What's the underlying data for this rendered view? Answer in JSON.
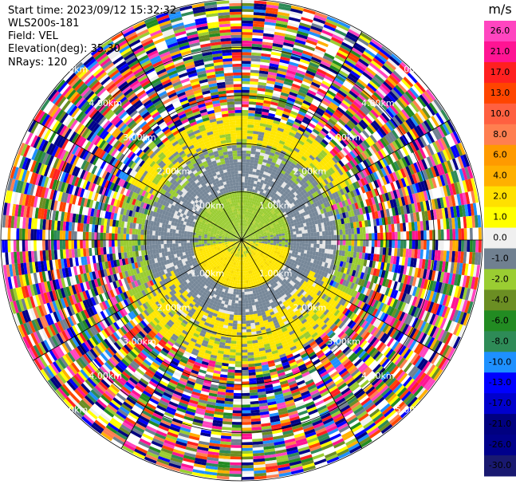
{
  "header": {
    "start_time": "Start time: 2023/09/12 15:32:32",
    "instrument": "WLS200s-181",
    "field": "Field: VEL",
    "elevation": "Elevation(deg): 35.30",
    "nrays": "NRays: 120"
  },
  "colorbar": {
    "unit": "m/s",
    "ticks": [
      "26.0",
      "21.0",
      "17.0",
      "13.0",
      "10.0",
      "8.0",
      "6.0",
      "4.0",
      "2.0",
      "1.0",
      "0.0",
      "-1.0",
      "-2.0",
      "-4.0",
      "-6.0",
      "-8.0",
      "-10.0",
      "-13.0",
      "-17.0",
      "-21.0",
      "-26.0",
      "-30.0"
    ],
    "colors": [
      "#ff45c0",
      "#ff1493",
      "#ff2020",
      "#ff4500",
      "#ff6040",
      "#ff7f50",
      "#ff9a00",
      "#ffb000",
      "#ffe000",
      "#ffff00",
      "#f0f0f0",
      "#708090",
      "#9acd32",
      "#6b8e23",
      "#228b22",
      "#2e8b57",
      "#1e90ff",
      "#0000ff",
      "#0000cd",
      "#000080",
      "#00008b",
      "#191970"
    ]
  },
  "range_ring_labels": {
    "ring1": "1.00km",
    "ring2": "2.00km",
    "ring3": "3.00km",
    "ring4": "4.00km",
    "ring5": "5.00km"
  },
  "chart_data": {
    "type": "heatmap",
    "title": "",
    "projection": "polar (PPI)",
    "field": "VEL",
    "units": "m/s",
    "n_rays": 120,
    "elevation_deg": 35.3,
    "range_rings_km": [
      1,
      2,
      3,
      4,
      5
    ],
    "max_range_km": 5.0,
    "color_scale_m_s": [
      -30,
      -26,
      -21,
      -17,
      -13,
      -10,
      -8,
      -6,
      -4,
      -2,
      -1,
      0,
      1,
      2,
      4,
      6,
      8,
      10,
      13,
      17,
      21,
      26
    ],
    "pattern": {
      "inner_north_velocity_m_s": -2.0,
      "inner_south_velocity_m_s": 2.0,
      "mid_ring_velocity_m_s": -1.0,
      "north_arc_velocity_m_s": 2.0,
      "south_arc_velocity_m_s": 2.0,
      "outer_region": "noise (mixed values)"
    }
  }
}
